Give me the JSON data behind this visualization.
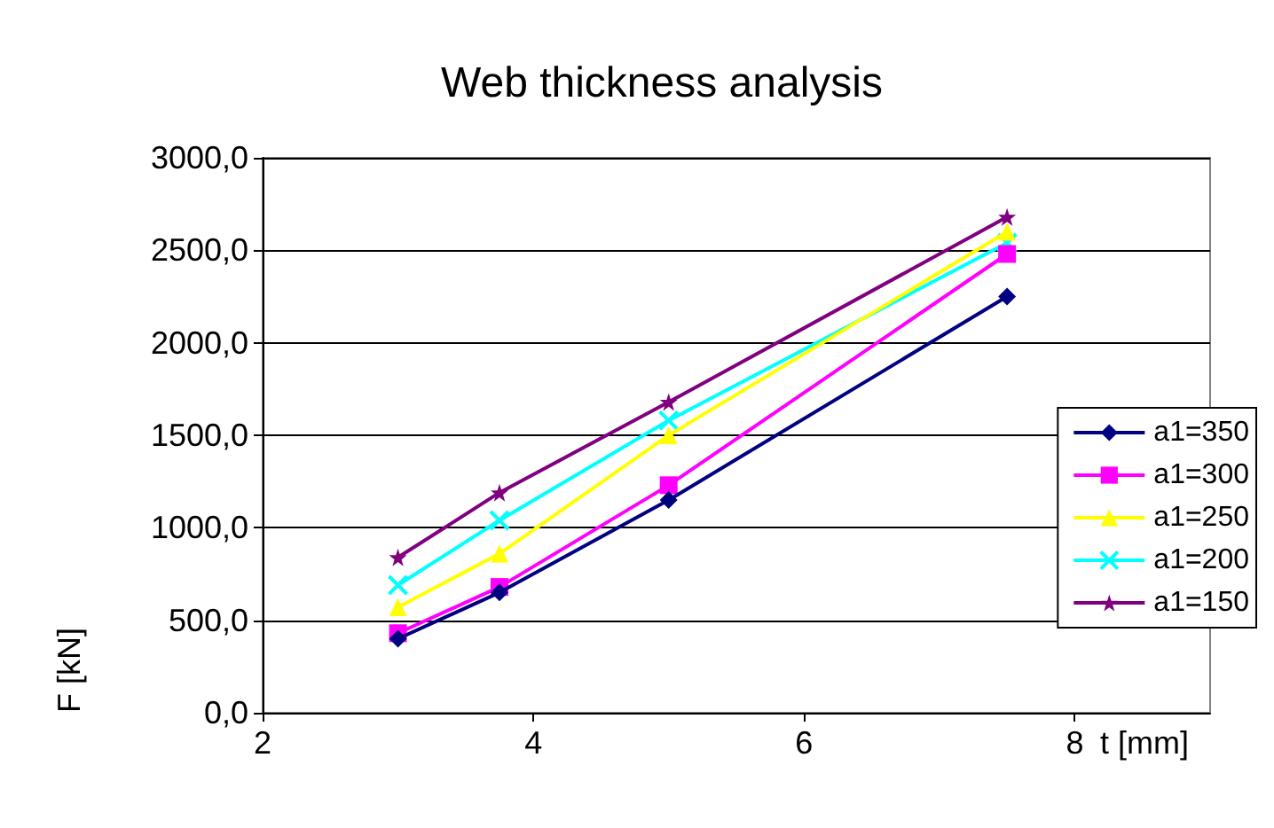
{
  "chart_data": {
    "type": "line",
    "title": "Web thickness analysis",
    "xlabel": "t [mm]",
    "ylabel": "F [kN]",
    "x": [
      3,
      3.75,
      5,
      7.5
    ],
    "series": [
      {
        "name": "a1=350",
        "color": "#000080",
        "marker": "diamond",
        "values": [
          400,
          650,
          1150,
          2250
        ]
      },
      {
        "name": "a1=300",
        "color": "#ff00ff",
        "marker": "square",
        "values": [
          430,
          680,
          1230,
          2480
        ]
      },
      {
        "name": "a1=250",
        "color": "#ffff00",
        "marker": "triangle",
        "values": [
          570,
          860,
          1500,
          2600
        ]
      },
      {
        "name": "a1=200",
        "color": "#00ffff",
        "marker": "cross",
        "values": [
          690,
          1040,
          1580,
          2540
        ]
      },
      {
        "name": "a1=150",
        "color": "#800080",
        "marker": "star",
        "values": [
          840,
          1190,
          1680,
          2680
        ]
      }
    ],
    "xlim": [
      2,
      9
    ],
    "xticks": [
      2,
      4,
      6,
      8
    ],
    "ylim": [
      0,
      3000
    ],
    "yticks": [
      {
        "value": 0,
        "label": "0,0"
      },
      {
        "value": 500,
        "label": "500,0"
      },
      {
        "value": 1000,
        "label": "1000,0"
      },
      {
        "value": 1500,
        "label": "1500,0"
      },
      {
        "value": 2000,
        "label": "2000,0"
      },
      {
        "value": 2500,
        "label": "2500,0"
      },
      {
        "value": 3000,
        "label": "3000,0"
      }
    ],
    "grid": "y",
    "legend": "right",
    "line_style": "solid"
  }
}
